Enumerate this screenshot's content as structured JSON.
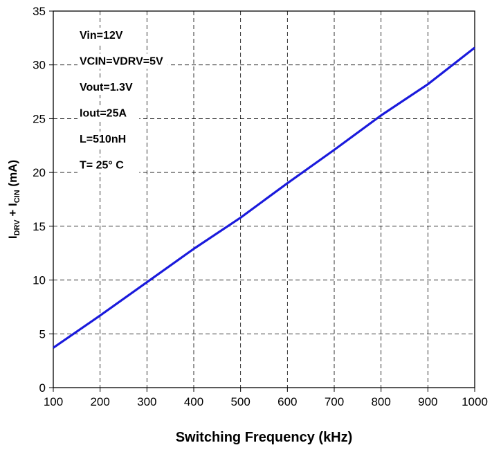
{
  "chart_data": {
    "type": "line",
    "title": "",
    "xlabel": "Switching Frequency (kHz)",
    "ylabel": {
      "parts": [
        "I",
        "DRV",
        " + I",
        "CIN",
        " (mA)"
      ]
    },
    "xlim": [
      100,
      1000
    ],
    "ylim": [
      0,
      35
    ],
    "xticks": [
      100,
      200,
      300,
      400,
      500,
      600,
      700,
      800,
      900,
      1000
    ],
    "yticks": [
      0,
      5,
      10,
      15,
      20,
      25,
      30,
      35
    ],
    "grid": true,
    "grid_style": "dashed",
    "annotations": [
      "Vin=12V",
      "VCIN=VDRV=5V",
      "Vout=1.3V",
      "Iout=25A",
      "L=510nH",
      "T= 25° C"
    ],
    "series": [
      {
        "color": "#1a1adc",
        "x": [
          100,
          200,
          300,
          400,
          500,
          600,
          700,
          800,
          900,
          1000
        ],
        "y": [
          3.7,
          6.7,
          9.8,
          12.9,
          15.8,
          19.0,
          22.1,
          25.3,
          28.2,
          31.6
        ]
      }
    ]
  }
}
